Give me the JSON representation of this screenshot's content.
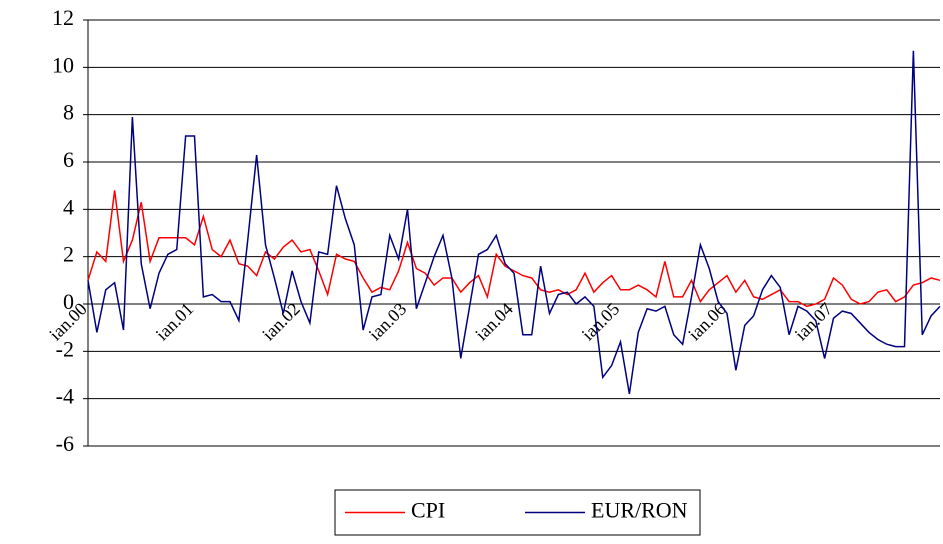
{
  "chart_data": {
    "type": "line",
    "categories": [
      "ian.00",
      null,
      null,
      null,
      null,
      null,
      null,
      null,
      null,
      null,
      null,
      null,
      "ian.01",
      null,
      null,
      null,
      null,
      null,
      null,
      null,
      null,
      null,
      null,
      null,
      "ian.02",
      null,
      null,
      null,
      null,
      null,
      null,
      null,
      null,
      null,
      null,
      null,
      "ian.03",
      null,
      null,
      null,
      null,
      null,
      null,
      null,
      null,
      null,
      null,
      null,
      "ian.04",
      null,
      null,
      null,
      null,
      null,
      null,
      null,
      null,
      null,
      null,
      null,
      "ian.05",
      null,
      null,
      null,
      null,
      null,
      null,
      null,
      null,
      null,
      null,
      null,
      "ian.06",
      null,
      null,
      null,
      null,
      null,
      null,
      null,
      null,
      null,
      null,
      null,
      "ian.07",
      null,
      null,
      null,
      null,
      null,
      null,
      null,
      null,
      null,
      null,
      null,
      null
    ],
    "series": [
      {
        "name": "CPI",
        "color": "#ff0000",
        "values": [
          1.0,
          2.2,
          1.8,
          4.8,
          1.8,
          2.7,
          4.3,
          1.8,
          2.8,
          2.8,
          2.8,
          2.8,
          2.5,
          3.7,
          2.3,
          2.0,
          2.7,
          1.7,
          1.6,
          1.2,
          2.2,
          1.9,
          2.4,
          2.7,
          2.2,
          2.3,
          1.4,
          0.4,
          2.1,
          1.9,
          1.8,
          1.1,
          0.5,
          0.7,
          0.6,
          1.4,
          2.6,
          1.5,
          1.3,
          0.8,
          1.1,
          1.1,
          0.5,
          0.9,
          1.2,
          0.3,
          2.1,
          1.6,
          1.4,
          1.2,
          1.1,
          0.6,
          0.5,
          0.6,
          0.4,
          0.6,
          1.3,
          0.5,
          0.9,
          1.2,
          0.6,
          0.6,
          0.8,
          0.6,
          0.3,
          1.8,
          0.3,
          0.3,
          1.0,
          0.1,
          0.6,
          0.9,
          1.2,
          0.5,
          1.0,
          0.3,
          0.2,
          0.4,
          0.6,
          0.1,
          0.1,
          -0.1,
          0.0,
          0.2,
          1.1,
          0.8,
          0.2,
          0.0,
          0.1,
          0.5,
          0.6,
          0.1,
          0.3,
          0.8,
          0.9,
          1.1,
          1.0
        ]
      },
      {
        "name": "EUR/RON",
        "color": "#000080",
        "values": [
          1.0,
          -1.2,
          0.6,
          0.9,
          -1.1,
          7.9,
          1.7,
          -0.2,
          1.3,
          2.1,
          2.3,
          7.1,
          7.1,
          0.3,
          0.4,
          0.1,
          0.1,
          -0.7,
          2.7,
          6.3,
          2.5,
          1.1,
          -0.4,
          1.4,
          0.1,
          -0.8,
          2.2,
          2.1,
          5.0,
          3.6,
          2.5,
          -1.1,
          0.3,
          0.4,
          2.9,
          1.9,
          4.0,
          -0.2,
          0.9,
          2.0,
          2.9,
          1.1,
          -2.3,
          -0.1,
          2.1,
          2.3,
          2.9,
          1.7,
          1.3,
          -1.3,
          -1.3,
          1.6,
          -0.4,
          0.4,
          0.5,
          0.0,
          0.3,
          -0.1,
          -3.1,
          -2.6,
          -1.6,
          -3.8,
          -1.2,
          -0.2,
          -0.3,
          -0.1,
          -1.3,
          -1.7,
          0.3,
          2.5,
          1.5,
          0.1,
          -0.4,
          -2.8,
          -0.9,
          -0.5,
          0.6,
          1.2,
          0.7,
          -1.3,
          -0.1,
          -0.3,
          -0.7,
          -2.3,
          -0.6,
          -0.3,
          -0.4,
          -0.8,
          -1.2,
          -1.5,
          -1.7,
          -1.8,
          -1.8,
          10.7,
          -1.3,
          -0.5,
          -0.1
        ]
      }
    ],
    "ylim": [
      -6,
      12
    ],
    "yticks": [
      -6,
      -4,
      -2,
      0,
      2,
      4,
      6,
      8,
      10,
      12
    ],
    "grid": true,
    "legend": "bottom"
  }
}
